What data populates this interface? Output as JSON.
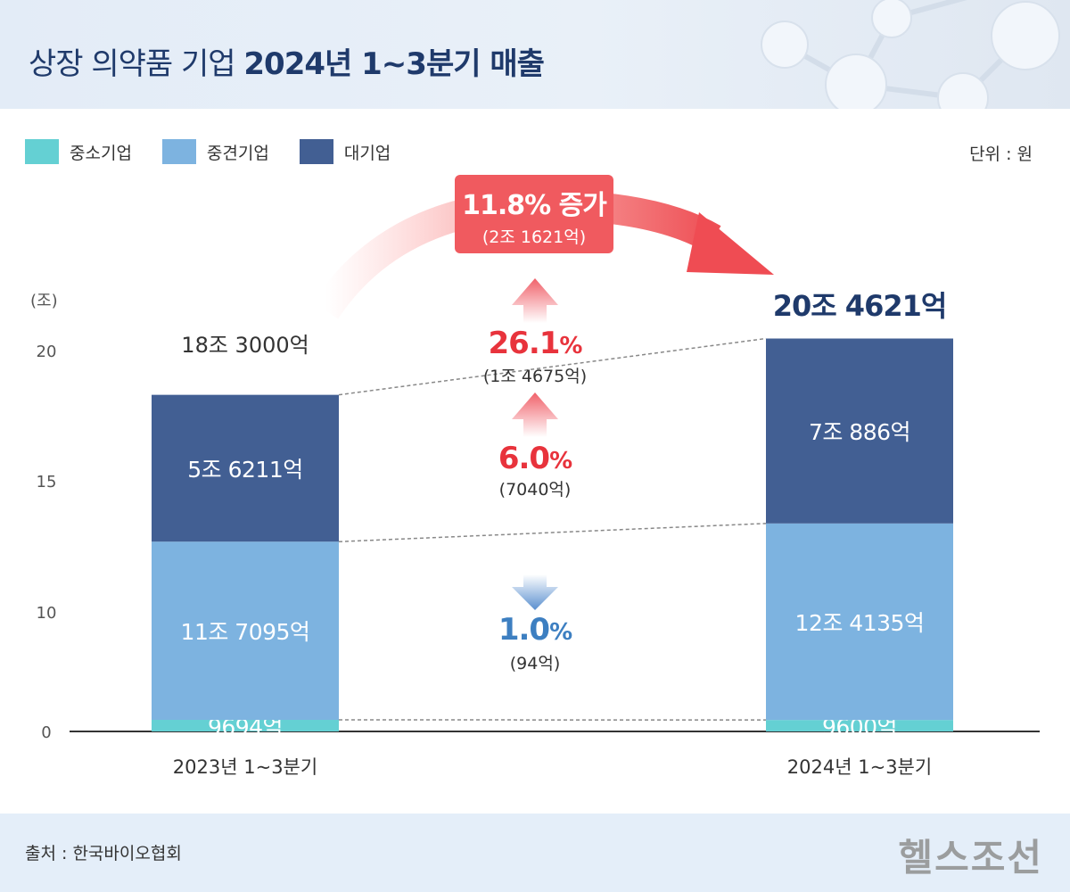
{
  "title": {
    "prefix": "상장 의약품 기업",
    "bold": "2024년 1~3분기 매출"
  },
  "legend": [
    {
      "label": "중소기업",
      "color": "#64d0d3"
    },
    {
      "label": "중견기업",
      "color": "#7db3e0"
    },
    {
      "label": "대기업",
      "color": "#425f93"
    }
  ],
  "unit": "단위 : 원",
  "chart_data": {
    "type": "bar",
    "stacked": true,
    "title": "상장 의약품 기업 2024년 1~3분기 매출",
    "ylabel": "(조)",
    "ylim": [
      0,
      20
    ],
    "yticks": [
      0,
      10,
      15,
      20
    ],
    "categories": [
      "2023년 1~3분기",
      "2024년 1~3분기"
    ],
    "series": [
      {
        "name": "중소기업",
        "color": "#64d0d3",
        "values": [
          0.9694,
          0.96
        ],
        "labels": [
          "9694억",
          "9600억"
        ]
      },
      {
        "name": "중견기업",
        "color": "#7db3e0",
        "values": [
          11.7095,
          12.4135
        ],
        "labels": [
          "11조 7095억",
          "12조 4135억"
        ]
      },
      {
        "name": "대기업",
        "color": "#425f93",
        "values": [
          5.6211,
          7.0886
        ],
        "labels": [
          "5조 6211억",
          "7조 886억"
        ]
      }
    ],
    "totals": [
      18.3,
      20.4621
    ],
    "total_labels": [
      "18조 3000억",
      "20조 4621억"
    ],
    "total_change": {
      "pct": "11.8%",
      "text": "증가",
      "amount": "(2조 1621억)"
    },
    "changes": [
      {
        "series": "대기업",
        "direction": "up",
        "pct": "26.1",
        "amount": "(1조 4675억)",
        "color": "#e8333c"
      },
      {
        "series": "중견기업",
        "direction": "up",
        "pct": "6.0",
        "amount": "(7040억)",
        "color": "#e8333c"
      },
      {
        "series": "중소기업",
        "direction": "down",
        "pct": "1.0",
        "amount": "(94억)",
        "color": "#3d7fc1"
      }
    ]
  },
  "footer": {
    "source": "출처 : 한국바이오협회",
    "logo": "헬스조선"
  }
}
